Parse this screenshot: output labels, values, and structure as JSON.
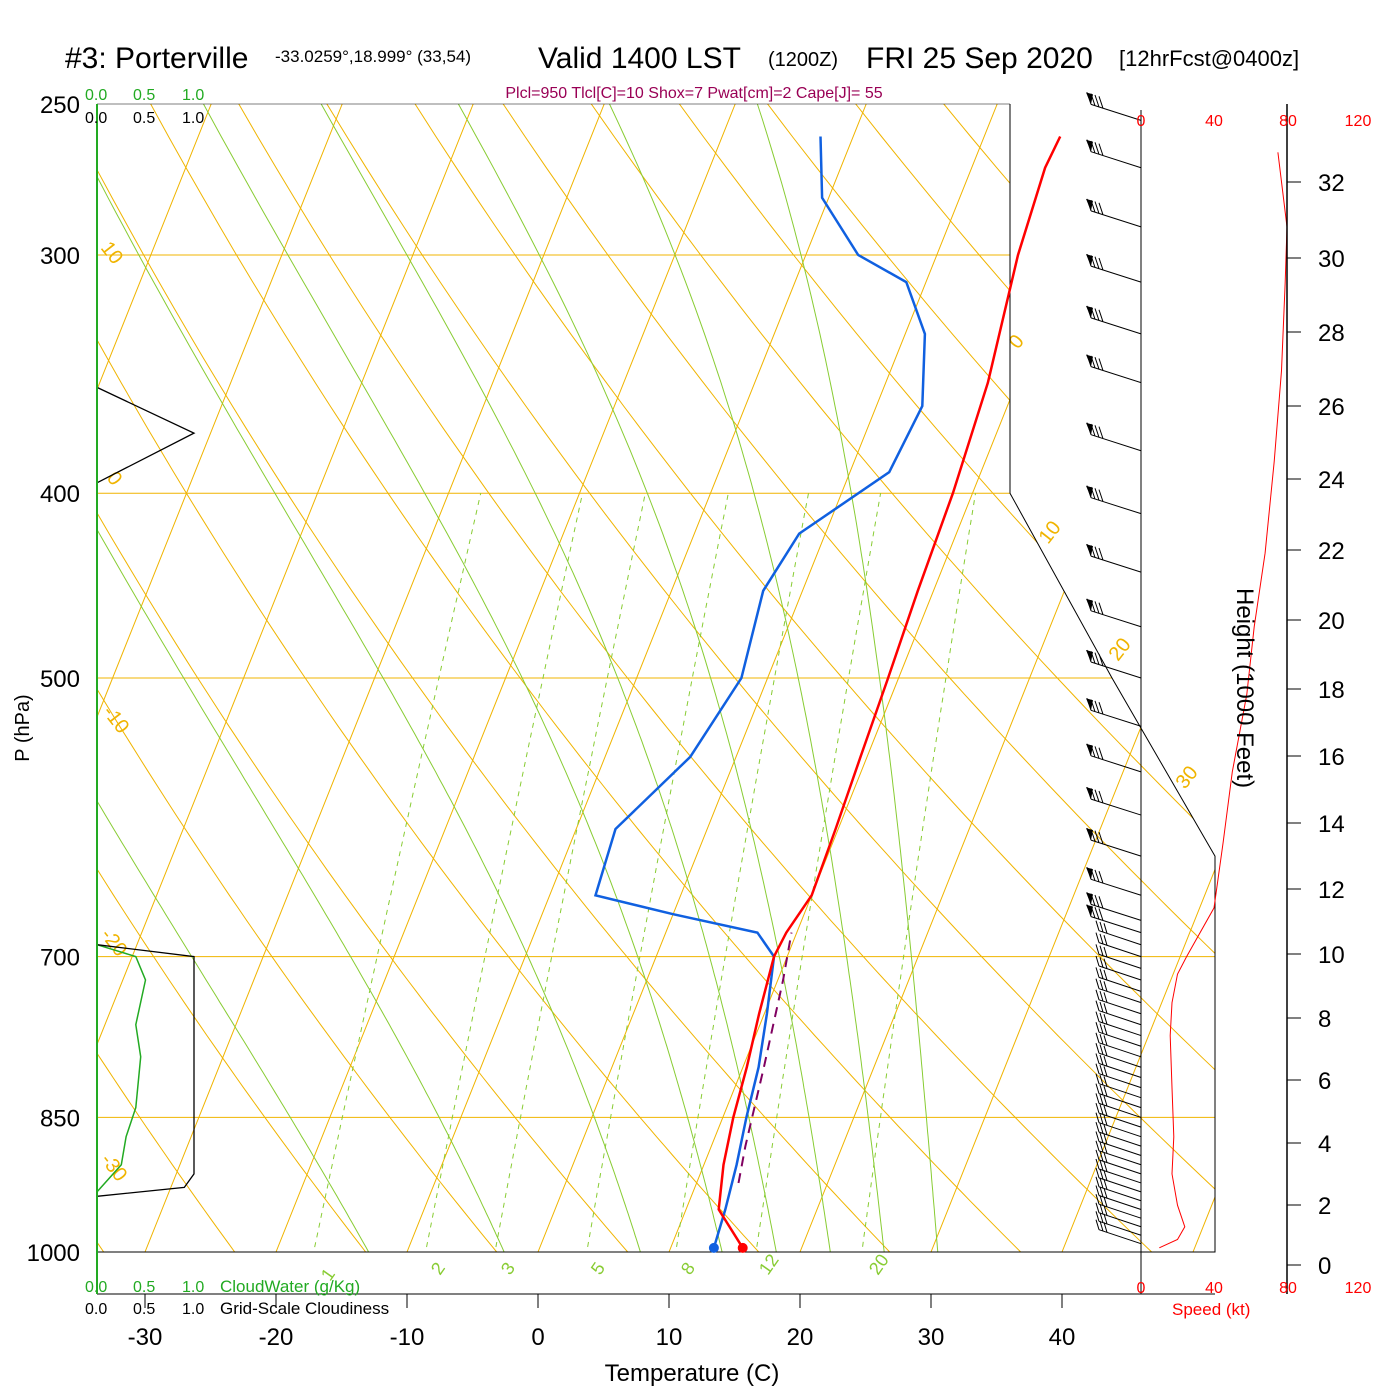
{
  "header": {
    "station": "#3: Porterville",
    "coords": "-33.0259°,18.999° (33,54)",
    "valid": "Valid 1400 LST",
    "zulu": "(1200Z)",
    "date": "FRI 25 Sep 2020",
    "forecast": "[12hrFcst@0400z]",
    "indices": "Plcl=950 Tlcl[C]=10 Shox=7 Pwat[cm]=2 Cape[J]= 55"
  },
  "cloud_legend": {
    "cw_ticks": [
      "0.0",
      "0.5",
      "1.0"
    ],
    "gsc_ticks": [
      "0.0",
      "0.5",
      "1.0"
    ],
    "cw_label": "CloudWater (g/Kg)",
    "gsc_label": "Grid-Scale Cloudiness"
  },
  "colors": {
    "isotherm": "#f0b400",
    "mixing_ratio": "#88cc33",
    "temperature": "#ff0000",
    "dewpoint": "#1060e0",
    "parcel": "#800060",
    "cloudwater": "#22aa22",
    "speed": "#ff0000",
    "indices": "#990055"
  },
  "chart_data": {
    "type": "line",
    "title": "#3: Porterville",
    "xlabel": "Temperature (C)",
    "ylabel": "P (hPa)",
    "y2label": "Height (1000 Feet)",
    "xlim": [
      -34,
      36
    ],
    "ylim_hpa": [
      1000,
      250
    ],
    "x_ticks": [
      "-30",
      "-20",
      "-10",
      "0",
      "10",
      "20",
      "30",
      "40"
    ],
    "pressure_ticks": [
      "250",
      "300",
      "400",
      "500",
      "700",
      "850",
      "1000"
    ],
    "height_ticks": [
      "0",
      "2",
      "4",
      "6",
      "8",
      "10",
      "12",
      "14",
      "16",
      "18",
      "20",
      "22",
      "24",
      "26",
      "28",
      "30",
      "32"
    ],
    "speed_ticks": [
      "0",
      "40",
      "80",
      "120"
    ],
    "speed_label": "Speed (kt)",
    "isotherm_labels": [
      "10",
      "0",
      "-10",
      "-20",
      "-30",
      "0",
      "10",
      "20",
      "30"
    ],
    "mixing_ratio_labels": [
      "1",
      "2",
      "3",
      "5",
      "8",
      "12",
      "20"
    ],
    "series": [
      {
        "points": [
          [
            15.5,
            995
          ],
          [
            12.5,
            950
          ],
          [
            11.5,
            900
          ],
          [
            10.8,
            850
          ],
          [
            10.3,
            800
          ],
          [
            9.6,
            750
          ],
          [
            9.0,
            700
          ],
          [
            9.2,
            680
          ],
          [
            10.0,
            650
          ],
          [
            9.8,
            600
          ],
          [
            9.5,
            550
          ],
          [
            9.2,
            500
          ],
          [
            8.8,
            450
          ],
          [
            8.5,
            400
          ],
          [
            7.8,
            350
          ],
          [
            6.2,
            300
          ],
          [
            5.6,
            270
          ],
          [
            5.8,
            260
          ]
        ]
      },
      {
        "points": [
          [
            13.3,
            995
          ],
          [
            13.0,
            950
          ],
          [
            12.5,
            900
          ],
          [
            11.8,
            850
          ],
          [
            11.2,
            800
          ],
          [
            10.2,
            750
          ],
          [
            9.0,
            700
          ],
          [
            7.0,
            680
          ],
          [
            0.0,
            665
          ],
          [
            -6.5,
            650
          ],
          [
            -7.0,
            600
          ],
          [
            -3.5,
            550
          ],
          [
            -2.0,
            500
          ],
          [
            -3.0,
            450
          ],
          [
            -2.0,
            420
          ],
          [
            3.0,
            390
          ],
          [
            3.5,
            360
          ],
          [
            1.5,
            330
          ],
          [
            -1.5,
            310
          ],
          [
            -6.0,
            300
          ],
          [
            -10.5,
            280
          ],
          [
            -12.5,
            260
          ]
        ]
      },
      {
        "points": [
          [
            13.2,
            920
          ],
          [
            12.6,
            880
          ],
          [
            11.6,
            800
          ],
          [
            10.4,
            720
          ],
          [
            9.6,
            680
          ]
        ]
      }
    ],
    "cloudwater_profile": [
      [
        0.0,
        690
      ],
      [
        0.4,
        700
      ],
      [
        0.5,
        720
      ],
      [
        0.4,
        760
      ],
      [
        0.45,
        790
      ],
      [
        0.4,
        840
      ],
      [
        0.3,
        870
      ],
      [
        0.25,
        900
      ],
      [
        0.0,
        930
      ]
    ],
    "cloudiness_profile": [
      [
        0.0,
        690
      ],
      [
        1.0,
        700
      ],
      [
        1.0,
        910
      ],
      [
        0.9,
        925
      ],
      [
        0.0,
        935
      ]
    ],
    "upper_cloudiness": [
      [
        0.0,
        352
      ],
      [
        1.0,
        372
      ],
      [
        0.0,
        395
      ]
    ],
    "speed_profile_kt": [
      [
        10,
        995
      ],
      [
        20,
        985
      ],
      [
        24,
        970
      ],
      [
        20,
        945
      ],
      [
        17,
        910
      ],
      [
        18,
        870
      ],
      [
        17,
        820
      ],
      [
        16,
        770
      ],
      [
        17,
        740
      ],
      [
        20,
        715
      ],
      [
        25,
        700
      ],
      [
        40,
        660
      ],
      [
        45,
        610
      ],
      [
        50,
        560
      ],
      [
        58,
        510
      ],
      [
        62,
        470
      ],
      [
        68,
        430
      ],
      [
        73,
        385
      ],
      [
        77,
        345
      ],
      [
        79,
        310
      ],
      [
        80,
        290
      ],
      [
        75,
        265
      ]
    ],
    "wind_barb_levels_hpa": [
      990,
      980,
      970,
      960,
      950,
      940,
      930,
      920,
      910,
      900,
      890,
      880,
      870,
      860,
      850,
      840,
      830,
      820,
      810,
      800,
      790,
      780,
      770,
      760,
      750,
      740,
      730,
      720,
      710,
      700,
      690,
      680,
      670,
      650,
      620,
      590,
      560,
      530,
      500,
      470,
      440,
      410,
      380,
      350,
      330,
      310,
      290,
      270,
      255
    ]
  }
}
